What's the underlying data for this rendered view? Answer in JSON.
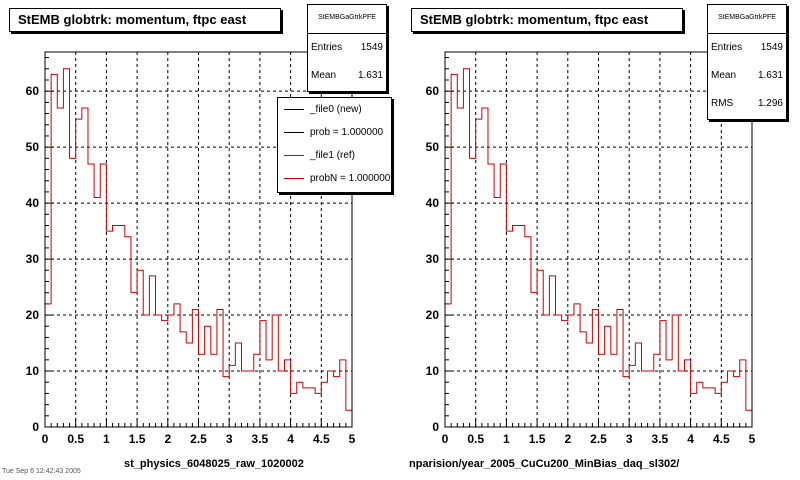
{
  "colors": {
    "hist_ref": "#cc0000",
    "hist_new": "#000000",
    "grid": "#000000",
    "frame": "#000000"
  },
  "panels": [
    {
      "title": "StEMB globtrk: momentum, ftpc east",
      "stats": {
        "name": "StEMBGaGtrkPFE",
        "entries_label": "Entries",
        "entries": "1549",
        "mean_label": "Mean",
        "mean": "1.631"
      },
      "legend": [
        {
          "text": "_file0 (new)",
          "color": "#000000"
        },
        {
          "text": "prob = 1.000000",
          "color": "#000000"
        },
        {
          "text": "_file1 (ref)",
          "color": "#cc0000"
        },
        {
          "text": "probN = 1.000000",
          "color": "#cc0000"
        }
      ],
      "footer": "st_physics_6048025_raw_1020002"
    },
    {
      "title": "StEMB globtrk: momentum, ftpc east",
      "stats": {
        "name": "StEMBGaGtrkPFE",
        "entries_label": "Entries",
        "entries": "1549",
        "mean_label": "Mean",
        "mean": "1.631",
        "rms_label": "RMS",
        "rms": "1.296"
      },
      "footer": "nparision/year_2005_CuCu200_MinBias_daq_sl302/"
    }
  ],
  "corner_text": "Tue Sep  6 12:42:43 2005",
  "chart_data": [
    {
      "type": "bar",
      "title": "StEMB globtrk: momentum, ftpc east",
      "xlim": [
        0,
        5
      ],
      "ylim": [
        0,
        67
      ],
      "xticks": [
        "0",
        "0.5",
        "1",
        "1.5",
        "2",
        "2.5",
        "3",
        "3.5",
        "4",
        "4.5",
        "5"
      ],
      "yticks": [
        "0",
        "10",
        "20",
        "30",
        "40",
        "50",
        "60"
      ],
      "grid": true,
      "legend_position": "top-right",
      "bin_width": 0.1,
      "series": [
        {
          "name": "_file1 (ref)",
          "color": "#cc0000",
          "values": [
            22,
            63,
            57,
            64,
            48,
            55,
            57,
            47,
            41,
            47,
            35,
            36,
            36,
            34,
            24,
            28,
            20,
            27,
            20,
            19,
            20,
            22,
            17,
            15,
            21,
            13,
            18,
            13,
            21,
            9,
            11,
            15,
            10,
            10,
            13,
            19,
            12,
            20,
            10,
            12,
            6,
            8,
            7,
            7,
            6,
            8,
            10,
            9,
            12,
            3
          ]
        }
      ]
    },
    {
      "type": "bar",
      "title": "StEMB globtrk: momentum, ftpc east",
      "xlim": [
        0,
        5
      ],
      "ylim": [
        0,
        67
      ],
      "xticks": [
        "0",
        "0.5",
        "1",
        "1.5",
        "2",
        "2.5",
        "3",
        "3.5",
        "4",
        "4.5",
        "5"
      ],
      "yticks": [
        "0",
        "10",
        "20",
        "30",
        "40",
        "50",
        "60"
      ],
      "grid": true,
      "bin_width": 0.1,
      "series": [
        {
          "color": "#cc0000",
          "values": [
            22,
            63,
            57,
            64,
            48,
            55,
            57,
            47,
            41,
            47,
            35,
            36,
            36,
            34,
            24,
            28,
            20,
            27,
            20,
            19,
            20,
            22,
            17,
            15,
            21,
            13,
            18,
            13,
            21,
            9,
            11,
            15,
            10,
            10,
            13,
            19,
            12,
            20,
            10,
            12,
            6,
            8,
            7,
            7,
            6,
            8,
            10,
            9,
            12,
            3
          ]
        }
      ]
    }
  ]
}
